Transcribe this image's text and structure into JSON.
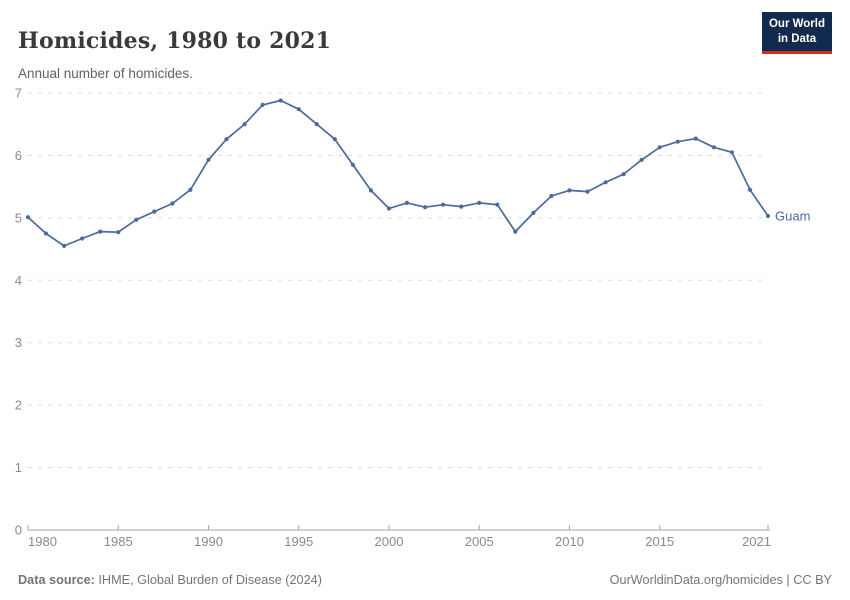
{
  "header": {
    "title": "Homicides, 1980 to 2021",
    "subtitle": "Annual number of homicides."
  },
  "logo": {
    "line1": "Our World",
    "line2": "in Data",
    "bg_color": "#122a4d",
    "accent_color": "#d42b21"
  },
  "footer": {
    "source_label": "Data source:",
    "source_text": " IHME, Global Burden of Disease (2024)",
    "license_text": "OurWorldinData.org/homicides | CC BY"
  },
  "chart_data": {
    "type": "line",
    "title": "Homicides, 1980 to 2021",
    "subtitle": "Annual number of homicides.",
    "xlabel": "",
    "ylabel": "",
    "xlim": [
      1980,
      2021
    ],
    "ylim": [
      0,
      7
    ],
    "yticks": [
      0,
      1,
      2,
      3,
      4,
      5,
      6,
      7
    ],
    "xticks": [
      1980,
      1985,
      1990,
      1995,
      2000,
      2005,
      2010,
      2015,
      2021
    ],
    "grid": "horizontal-dashed",
    "legend_position": "end-of-line-label",
    "series": [
      {
        "name": "Guam",
        "color": "#4c6a9c",
        "x": [
          1980,
          1981,
          1982,
          1983,
          1984,
          1985,
          1986,
          1987,
          1988,
          1989,
          1990,
          1991,
          1992,
          1993,
          1994,
          1995,
          1996,
          1997,
          1998,
          1999,
          2000,
          2001,
          2002,
          2003,
          2004,
          2005,
          2006,
          2007,
          2008,
          2009,
          2010,
          2011,
          2012,
          2013,
          2014,
          2015,
          2016,
          2017,
          2018,
          2019,
          2020,
          2021
        ],
        "values": [
          5.01,
          4.75,
          4.55,
          4.67,
          4.78,
          4.77,
          4.97,
          5.1,
          5.23,
          5.45,
          5.93,
          6.26,
          6.5,
          6.81,
          6.88,
          6.74,
          6.5,
          6.26,
          5.85,
          5.44,
          5.15,
          5.24,
          5.17,
          5.21,
          5.18,
          5.24,
          5.21,
          4.78,
          5.08,
          5.35,
          5.44,
          5.42,
          5.57,
          5.7,
          5.93,
          6.13,
          6.22,
          6.27,
          6.13,
          6.05,
          5.45,
          5.03
        ]
      }
    ],
    "style": {
      "grid_color": "#dcdcdc",
      "axis_line_color": "#a6a6a6",
      "tick_label_color": "#8b8b8b",
      "entity_label_color": "#4c6a9c"
    }
  }
}
